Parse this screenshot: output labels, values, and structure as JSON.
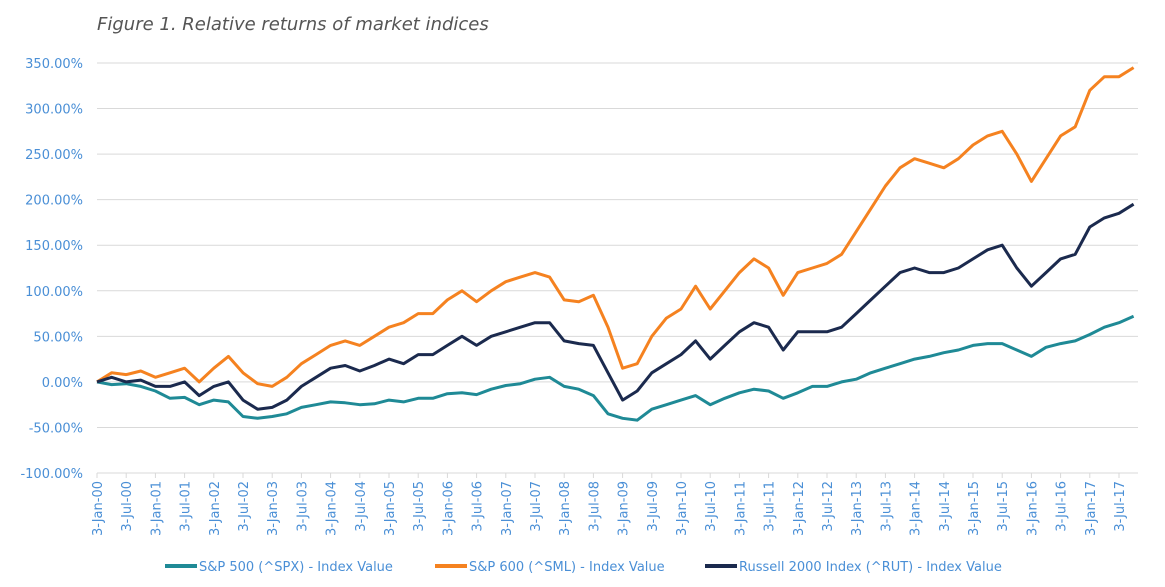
{
  "chart_data": {
    "type": "line",
    "title": "Figure 1. Relative returns of market indices",
    "categories": [
      "3-Jan-00",
      null,
      "3-Jul-00",
      null,
      "3-Jan-01",
      null,
      "3-Jul-01",
      null,
      "3-Jan-02",
      null,
      "3-Jul-02",
      null,
      "3-Jan-03",
      null,
      "3-Jul-03",
      null,
      "3-Jan-04",
      null,
      "3-Jul-04",
      null,
      "3-Jan-05",
      null,
      "3-Jul-05",
      null,
      "3-Jan-06",
      null,
      "3-Jul-06",
      null,
      "3-Jan-07",
      null,
      "3-Jul-07",
      null,
      "3-Jan-08",
      null,
      "3-Jul-08",
      null,
      "3-Jan-09",
      null,
      "3-Jul-09",
      null,
      "3-Jan-10",
      null,
      "3-Jul-10",
      null,
      "3-Jan-11",
      null,
      "3-Jul-11",
      null,
      "3-Jan-12",
      null,
      "3-Jul-12",
      null,
      "3-Jan-13",
      null,
      "3-Jul-13",
      null,
      "3-Jan-14",
      null,
      "3-Jul-14",
      null,
      "3-Jan-15",
      null,
      "3-Jul-15",
      null,
      "3-Jan-16",
      null,
      "3-Jul-16",
      null,
      "3-Jan-17",
      null,
      "3-Jul-17",
      null
    ],
    "series": [
      {
        "name": "S&P 500 (^SPX) - Index Value",
        "color": "#1f8a96",
        "values": [
          0,
          -3,
          -2,
          -5,
          -10,
          -18,
          -17,
          -25,
          -20,
          -22,
          -38,
          -40,
          -38,
          -35,
          -28,
          -25,
          -22,
          -23,
          -25,
          -24,
          -20,
          -22,
          -18,
          -18,
          -13,
          -12,
          -14,
          -8,
          -4,
          -2,
          3,
          5,
          -5,
          -8,
          -15,
          -35,
          -40,
          -42,
          -30,
          -25,
          -20,
          -15,
          -25,
          -18,
          -12,
          -8,
          -10,
          -18,
          -12,
          -5,
          -5,
          0,
          3,
          10,
          15,
          20,
          25,
          28,
          32,
          35,
          40,
          42,
          42,
          35,
          28,
          38,
          42,
          45,
          52,
          60,
          65,
          72
        ]
      },
      {
        "name": "S&P 600 (^SML) - Index Value",
        "color": "#f58220",
        "values": [
          0,
          10,
          8,
          12,
          5,
          10,
          15,
          0,
          15,
          28,
          10,
          -2,
          -5,
          5,
          20,
          30,
          40,
          45,
          40,
          50,
          60,
          65,
          75,
          75,
          90,
          100,
          88,
          100,
          110,
          115,
          120,
          115,
          90,
          88,
          95,
          60,
          15,
          20,
          50,
          70,
          80,
          105,
          80,
          100,
          120,
          135,
          125,
          95,
          120,
          125,
          130,
          140,
          165,
          190,
          215,
          235,
          245,
          240,
          235,
          245,
          260,
          270,
          275,
          250,
          220,
          245,
          270,
          280,
          320,
          335,
          335,
          345
        ]
      },
      {
        "name": "Russell 2000 Index (^RUT) - Index Value",
        "color": "#1b2a4e",
        "values": [
          0,
          5,
          0,
          2,
          -5,
          -5,
          0,
          -15,
          -5,
          0,
          -20,
          -30,
          -28,
          -20,
          -5,
          5,
          15,
          18,
          12,
          18,
          25,
          20,
          30,
          30,
          40,
          50,
          40,
          50,
          55,
          60,
          65,
          65,
          45,
          42,
          40,
          10,
          -20,
          -10,
          10,
          20,
          30,
          45,
          25,
          40,
          55,
          65,
          60,
          35,
          55,
          55,
          55,
          60,
          75,
          90,
          105,
          120,
          125,
          120,
          120,
          125,
          135,
          145,
          150,
          125,
          105,
          120,
          135,
          140,
          170,
          180,
          185,
          195
        ]
      }
    ],
    "ylim": [
      -100,
      350
    ],
    "yticks": [
      {
        "value": -100,
        "label": "-100.00%"
      },
      {
        "value": -50,
        "label": "-50.00%"
      },
      {
        "value": 0,
        "label": "0.00%"
      },
      {
        "value": 50,
        "label": "50.00%"
      },
      {
        "value": 100,
        "label": "100.00%"
      },
      {
        "value": 150,
        "label": "150.00%"
      },
      {
        "value": 200,
        "label": "200.00%"
      },
      {
        "value": 250,
        "label": "250.00%"
      },
      {
        "value": 300,
        "label": "300.00%"
      },
      {
        "value": 350,
        "label": "350.00%"
      }
    ],
    "grid": true,
    "legend": "bottom"
  }
}
